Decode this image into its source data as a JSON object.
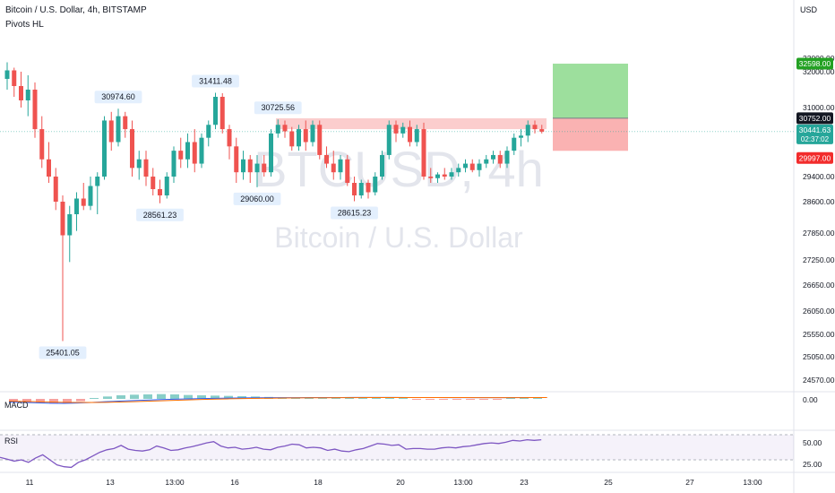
{
  "header": {
    "symbol_line": "Bitcoin / U.S. Dollar, 4h, BITSTAMP",
    "indicator": "Pivots HL",
    "currency": "USD"
  },
  "watermark": {
    "symbol": "BTCUSD, 4h",
    "name": "Bitcoin / U.S. Dollar"
  },
  "colors": {
    "up": "#26a69a",
    "down": "#ef5350",
    "macd": "#2962ff",
    "signal": "#ff6d00",
    "rsi": "#7e57c2"
  },
  "chart_data": [
    {
      "type": "candlestick",
      "title": "Bitcoin / U.S. Dollar, 4h, BITSTAMP",
      "ylim": [
        24400,
        33600
      ],
      "x_ticks": [
        "11",
        "13",
        "13:00",
        "16",
        "18",
        "20",
        "13:00",
        "23",
        "25",
        "27",
        "13:00"
      ],
      "y_ticks": [
        33000,
        32000,
        31000,
        29400,
        28600,
        27850,
        27250,
        26650,
        26050,
        25550,
        25050,
        24570
      ],
      "y_tick_labels": [
        "33000.00",
        "32000.00",
        "31000.00",
        "29400.00",
        "28600.00",
        "27850.00",
        "27250.00",
        "26650.00",
        "26050.00",
        "25550.00",
        "25050.00",
        "24570.00"
      ],
      "candles": [
        {
          "o": 31800,
          "h": 32700,
          "l": 31500,
          "c": 32100
        },
        {
          "o": 32100,
          "h": 32300,
          "l": 31300,
          "c": 31600
        },
        {
          "o": 31600,
          "h": 32000,
          "l": 31000,
          "c": 31200
        },
        {
          "o": 31200,
          "h": 31900,
          "l": 30800,
          "c": 31500
        },
        {
          "o": 31500,
          "h": 31700,
          "l": 30300,
          "c": 30500
        },
        {
          "o": 30500,
          "h": 30800,
          "l": 29600,
          "c": 29800
        },
        {
          "o": 29800,
          "h": 30200,
          "l": 29200,
          "c": 29400
        },
        {
          "o": 29400,
          "h": 29600,
          "l": 28400,
          "c": 28600
        },
        {
          "o": 28600,
          "h": 28800,
          "l": 25401.05,
          "c": 27800
        },
        {
          "o": 27800,
          "h": 28500,
          "l": 27200,
          "c": 28300
        },
        {
          "o": 28300,
          "h": 28900,
          "l": 27900,
          "c": 28700
        },
        {
          "o": 28700,
          "h": 29200,
          "l": 28400,
          "c": 28500
        },
        {
          "o": 28500,
          "h": 29400,
          "l": 28400,
          "c": 29100
        },
        {
          "o": 29100,
          "h": 29500,
          "l": 28300,
          "c": 29400
        },
        {
          "o": 29400,
          "h": 30800,
          "l": 29300,
          "c": 30700
        },
        {
          "o": 30700,
          "h": 30900,
          "l": 30000,
          "c": 30200
        },
        {
          "o": 30200,
          "h": 30974.6,
          "l": 30100,
          "c": 30800
        },
        {
          "o": 30800,
          "h": 30900,
          "l": 30300,
          "c": 30500
        },
        {
          "o": 30500,
          "h": 30700,
          "l": 29400,
          "c": 29600
        },
        {
          "o": 29600,
          "h": 30000,
          "l": 29300,
          "c": 29800
        },
        {
          "o": 29800,
          "h": 30000,
          "l": 29100,
          "c": 29400
        },
        {
          "o": 29400,
          "h": 29600,
          "l": 28800,
          "c": 29000
        },
        {
          "o": 29000,
          "h": 29300,
          "l": 28561.23,
          "c": 28800
        },
        {
          "o": 28800,
          "h": 29500,
          "l": 28700,
          "c": 29400
        },
        {
          "o": 29400,
          "h": 30100,
          "l": 29200,
          "c": 30000
        },
        {
          "o": 30000,
          "h": 30300,
          "l": 29600,
          "c": 29800
        },
        {
          "o": 29800,
          "h": 30400,
          "l": 29600,
          "c": 30200
        },
        {
          "o": 30200,
          "h": 30500,
          "l": 29500,
          "c": 29700
        },
        {
          "o": 29700,
          "h": 30400,
          "l": 29600,
          "c": 30300
        },
        {
          "o": 30300,
          "h": 30700,
          "l": 30100,
          "c": 30600
        },
        {
          "o": 30600,
          "h": 31411.48,
          "l": 30500,
          "c": 31300
        },
        {
          "o": 31300,
          "h": 31400,
          "l": 30400,
          "c": 30500
        },
        {
          "o": 30500,
          "h": 30600,
          "l": 29800,
          "c": 30100
        },
        {
          "o": 30100,
          "h": 30300,
          "l": 29200,
          "c": 29500
        },
        {
          "o": 29500,
          "h": 30000,
          "l": 29300,
          "c": 29800
        },
        {
          "o": 29800,
          "h": 29900,
          "l": 29200,
          "c": 29500
        },
        {
          "o": 29500,
          "h": 29900,
          "l": 29060,
          "c": 29700
        },
        {
          "o": 29700,
          "h": 29900,
          "l": 29400,
          "c": 29500
        },
        {
          "o": 29500,
          "h": 30500,
          "l": 29400,
          "c": 30400
        },
        {
          "o": 30400,
          "h": 30725.56,
          "l": 30300,
          "c": 30600
        },
        {
          "o": 30600,
          "h": 30700,
          "l": 30300,
          "c": 30450
        },
        {
          "o": 30450,
          "h": 30550,
          "l": 30000,
          "c": 30100
        },
        {
          "o": 30100,
          "h": 30600,
          "l": 30000,
          "c": 30500
        },
        {
          "o": 30500,
          "h": 30700,
          "l": 30000,
          "c": 30200
        },
        {
          "o": 30200,
          "h": 30700,
          "l": 30100,
          "c": 30600
        },
        {
          "o": 30600,
          "h": 30700,
          "l": 29800,
          "c": 29900
        },
        {
          "o": 29900,
          "h": 30100,
          "l": 29600,
          "c": 29700
        },
        {
          "o": 29700,
          "h": 30000,
          "l": 29300,
          "c": 29500
        },
        {
          "o": 29500,
          "h": 29900,
          "l": 29300,
          "c": 29800
        },
        {
          "o": 29800,
          "h": 29900,
          "l": 29100,
          "c": 29200
        },
        {
          "o": 29200,
          "h": 29400,
          "l": 28615.23,
          "c": 28800
        },
        {
          "o": 28800,
          "h": 29300,
          "l": 28700,
          "c": 29200
        },
        {
          "o": 29200,
          "h": 29300,
          "l": 28700,
          "c": 28900
        },
        {
          "o": 28900,
          "h": 29500,
          "l": 28800,
          "c": 29400
        },
        {
          "o": 29400,
          "h": 30000,
          "l": 29300,
          "c": 29900
        },
        {
          "o": 29900,
          "h": 30700,
          "l": 29800,
          "c": 30600
        },
        {
          "o": 30600,
          "h": 30700,
          "l": 30200,
          "c": 30400
        },
        {
          "o": 30400,
          "h": 30650,
          "l": 30300,
          "c": 30550
        },
        {
          "o": 30550,
          "h": 30700,
          "l": 30100,
          "c": 30200
        },
        {
          "o": 30200,
          "h": 30600,
          "l": 30100,
          "c": 30500
        },
        {
          "o": 30500,
          "h": 30650,
          "l": 29300,
          "c": 29400
        },
        {
          "o": 29400,
          "h": 29600,
          "l": 29200,
          "c": 29350
        },
        {
          "o": 29350,
          "h": 29500,
          "l": 29200,
          "c": 29450
        },
        {
          "o": 29450,
          "h": 29600,
          "l": 29300,
          "c": 29400
        },
        {
          "o": 29400,
          "h": 29600,
          "l": 29300,
          "c": 29500
        },
        {
          "o": 29500,
          "h": 29700,
          "l": 29400,
          "c": 29600
        },
        {
          "o": 29600,
          "h": 29800,
          "l": 29500,
          "c": 29700
        },
        {
          "o": 29700,
          "h": 29800,
          "l": 29500,
          "c": 29550
        },
        {
          "o": 29550,
          "h": 29800,
          "l": 29400,
          "c": 29700
        },
        {
          "o": 29700,
          "h": 29900,
          "l": 29600,
          "c": 29800
        },
        {
          "o": 29800,
          "h": 30000,
          "l": 29700,
          "c": 29900
        },
        {
          "o": 29900,
          "h": 30000,
          "l": 29600,
          "c": 29700
        },
        {
          "o": 29700,
          "h": 30100,
          "l": 29600,
          "c": 30000
        },
        {
          "o": 30000,
          "h": 30400,
          "l": 29900,
          "c": 30300
        },
        {
          "o": 30300,
          "h": 30500,
          "l": 30100,
          "c": 30350
        },
        {
          "o": 30350,
          "h": 30700,
          "l": 30200,
          "c": 30600
        },
        {
          "o": 30600,
          "h": 30700,
          "l": 30400,
          "c": 30500
        },
        {
          "o": 30500,
          "h": 30600,
          "l": 30400,
          "c": 30441.63
        }
      ],
      "pivots": [
        {
          "label": "30974.60",
          "candle": 16,
          "pos": "high"
        },
        {
          "label": "31411.48",
          "candle": 30,
          "pos": "high"
        },
        {
          "label": "30725.56",
          "candle": 39,
          "pos": "high"
        },
        {
          "label": "28561.23",
          "candle": 22,
          "pos": "low"
        },
        {
          "label": "29060.00",
          "candle": 36,
          "pos": "low"
        },
        {
          "label": "28615.23",
          "candle": 50,
          "pos": "low"
        },
        {
          "label": "25401.05",
          "candle": 8,
          "pos": "low"
        }
      ],
      "resistance_zone": [
        30500,
        30752
      ],
      "position": {
        "entry": 30752.0,
        "target": 32598.0,
        "stop": 29997.0
      },
      "price_labels": {
        "target": "32598.00",
        "entry": "30752.00",
        "last": "30441.63",
        "countdown": "02:37:02",
        "stop": "29997.00"
      }
    },
    {
      "type": "line",
      "title": "MACD",
      "y_tick_labels": [
        "0.00"
      ],
      "series": [
        {
          "name": "MACD",
          "values": [
            -420,
            -470,
            -520,
            -580,
            -600,
            -560,
            -480,
            -380,
            -300,
            -230,
            -160,
            -90,
            -40,
            0,
            40,
            80,
            110,
            130,
            150,
            160,
            165,
            170,
            175,
            180,
            185,
            190,
            195,
            195,
            190,
            185,
            180,
            175,
            170,
            165,
            160,
            165,
            170,
            175,
            180,
            185
          ]
        },
        {
          "name": "Signal",
          "values": [
            -300,
            -340,
            -380,
            -420,
            -460,
            -480,
            -480,
            -460,
            -420,
            -370,
            -310,
            -250,
            -190,
            -130,
            -80,
            -30,
            10,
            40,
            70,
            95,
            115,
            130,
            145,
            155,
            165,
            172,
            178,
            182,
            184,
            184,
            183,
            181,
            178,
            175,
            172,
            171,
            171,
            172,
            174,
            177
          ]
        }
      ]
    },
    {
      "type": "line",
      "title": "RSI",
      "y_tick_labels": [
        "50.00",
        "25.00"
      ],
      "series": [
        {
          "name": "RSI",
          "values": [
            34,
            31,
            28,
            30,
            26,
            33,
            38,
            30,
            22,
            19,
            18,
            26,
            30,
            36,
            42,
            46,
            48,
            53,
            47,
            45,
            44,
            46,
            52,
            49,
            45,
            46,
            49,
            51,
            54,
            57,
            59,
            52,
            49,
            50,
            47,
            48,
            50,
            47,
            46,
            50,
            52,
            55,
            54,
            49,
            50,
            49,
            45,
            47,
            44,
            43,
            46,
            48,
            52,
            56,
            55,
            53,
            54,
            47,
            48,
            48,
            47,
            47,
            49,
            50,
            49,
            51,
            52,
            54,
            56,
            57,
            56,
            58,
            61,
            60,
            62,
            61,
            62
          ]
        }
      ]
    }
  ]
}
